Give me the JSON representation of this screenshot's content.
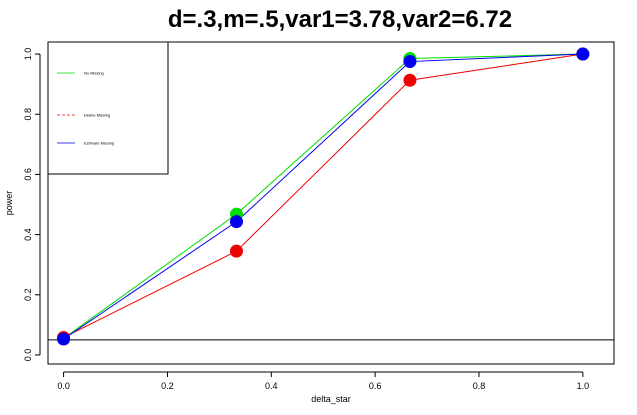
{
  "chart_data": {
    "type": "line",
    "title": "d=.3,m=.5,var1=3.78,var2=6.72",
    "xlabel": "delta_star",
    "ylabel": "power",
    "xlim": [
      -0.03,
      1.06
    ],
    "ylim": [
      -0.03,
      1.04
    ],
    "x_ticks": [
      0.0,
      0.2,
      0.4,
      0.6,
      0.8,
      1.0
    ],
    "x_tick_labels": [
      "0.0",
      "0.2",
      "0.4",
      "0.6",
      "0.8",
      "1.0"
    ],
    "y_ticks": [
      0.0,
      0.2,
      0.4,
      0.6,
      0.8,
      1.0
    ],
    "y_tick_labels": [
      "0.0",
      "0.2",
      "0.4",
      "0.6",
      "0.8",
      "1.0"
    ],
    "x": [
      0.0,
      0.333,
      0.667,
      1.0
    ],
    "series": [
      {
        "name": "No Missing",
        "color": "#00dd00",
        "dash": "solid",
        "values": [
          0.055,
          0.468,
          0.985,
          1.0
        ]
      },
      {
        "name": "Delete Missing",
        "color": "#ee0000",
        "dash": "dashed",
        "values": [
          0.058,
          0.345,
          0.913,
          1.0
        ]
      },
      {
        "name": "Estimate Missing",
        "color": "#0000ee",
        "dash": "solid",
        "values": [
          0.053,
          0.443,
          0.975,
          1.0
        ]
      }
    ],
    "reference_line": {
      "y": 0.05,
      "color": "#000000"
    },
    "legend_position": "top-left",
    "grid": false
  }
}
